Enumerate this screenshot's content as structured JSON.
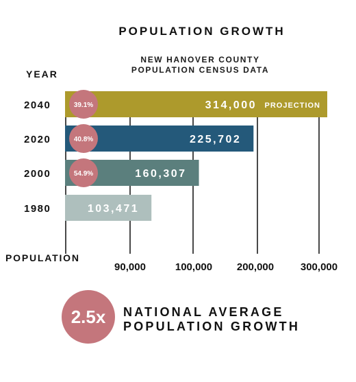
{
  "chart_data": {
    "type": "bar",
    "orientation": "horizontal",
    "title": "POPULATION GROWTH",
    "subtitle_lines": [
      "NEW HANOVER COUNTY",
      "POPULATION CENSUS DATA"
    ],
    "ylabel": "YEAR",
    "xlabel": "POPULATION",
    "categories": [
      "2040",
      "2020",
      "2000",
      "1980"
    ],
    "values": [
      314000,
      225702,
      160307,
      103471
    ],
    "value_labels": [
      "314,000",
      "225,702",
      "160,307",
      "103,471"
    ],
    "bar_suffix": [
      "PROJECTION",
      "",
      "",
      ""
    ],
    "badges": [
      "39.1%",
      "40.8%",
      "54.9%",
      ""
    ],
    "colors": [
      "#ad9a2c",
      "#24597a",
      "#5b7f7d",
      "#aebfbd"
    ],
    "badge_color": "#c4767c",
    "x_ticks": [
      {
        "label": "90,000"
      },
      {
        "label": "100,000"
      },
      {
        "label": "200,000"
      },
      {
        "label": "300,000"
      }
    ],
    "grid": "vertical lines"
  },
  "callout": {
    "value": "2.5x",
    "line1": "NATIONAL AVERAGE",
    "line2": "POPULATION GROWTH",
    "color": "#c4767c"
  }
}
